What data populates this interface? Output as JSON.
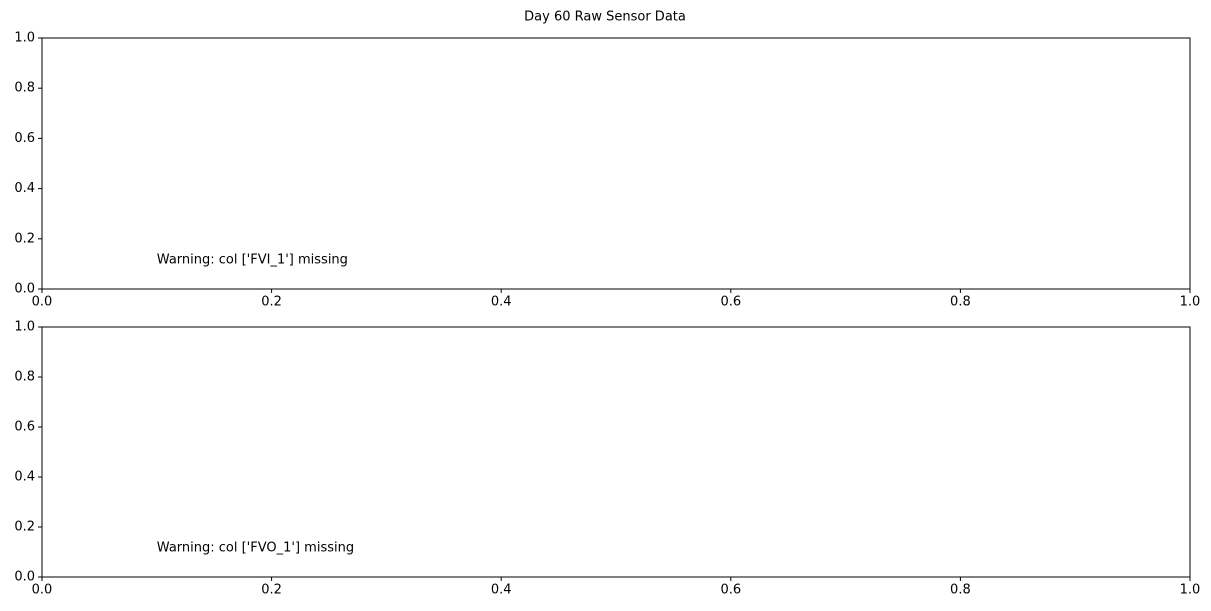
{
  "title": "Day 60 Raw Sensor Data",
  "chart_data": [
    {
      "type": "line",
      "annotations": [
        "Warning: col ['FVI_1'] missing"
      ],
      "xlim": [
        0,
        1
      ],
      "ylim": [
        0,
        1
      ],
      "xticks": [
        {
          "value": 0,
          "label": "0.0"
        },
        0.2,
        0.4,
        0.6,
        0.8,
        {
          "value": 1,
          "label": "1.0"
        }
      ],
      "yticks": [
        {
          "value": 0,
          "label": "0.0"
        },
        0.2,
        0.4,
        0.6,
        0.8,
        {
          "value": 1,
          "label": "1.0"
        }
      ]
    },
    {
      "type": "line",
      "annotations": [
        "Warning: col ['FVO_1'] missing"
      ],
      "xlim": [
        0,
        1
      ],
      "ylim": [
        0,
        1
      ],
      "xticks": [
        {
          "value": 0,
          "label": "0.0"
        },
        0.2,
        0.4,
        0.6,
        0.8,
        {
          "value": 1,
          "label": "1.0"
        }
      ],
      "yticks": [
        {
          "value": 0,
          "label": "0.0"
        },
        0.2,
        0.4,
        0.6,
        0.8,
        {
          "value": 1,
          "label": "1.0"
        }
      ]
    }
  ]
}
